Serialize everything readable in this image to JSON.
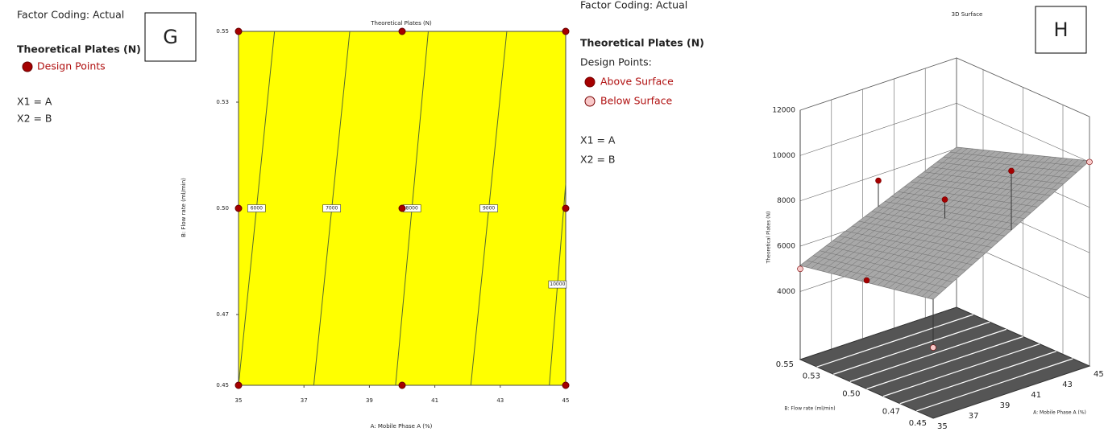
{
  "chart_data": [
    {
      "type": "contour",
      "panel": "G",
      "title": "Theoretical Plates (N)",
      "x_label": "A: Mobile Phase A (%)",
      "y_label": "B: Flow rate (ml/min)",
      "xlim": [
        35,
        45
      ],
      "xticks": [
        35,
        37,
        39,
        41,
        43,
        45
      ],
      "ylim": [
        0.45,
        0.55
      ],
      "yticks": [
        0.45,
        0.47,
        {
          "value": 0.5,
          "label": "0.50"
        },
        0.53,
        0.55
      ],
      "fill_color": "#ffff00",
      "contour_color": "#556b2f",
      "legend": {
        "factor_coding": "Factor Coding: Actual",
        "response": "Theoretical Plates (N)",
        "factors": [
          "X1 = A",
          "X2 = B"
        ]
      },
      "contours": [
        {
          "level": 6000,
          "x": [
            35,
            36.1
          ],
          "y": [
            0.45,
            0.55
          ]
        },
        {
          "level": 7000,
          "x": [
            37.3,
            38.4
          ],
          "y": [
            0.45,
            0.55
          ]
        },
        {
          "level": 8000,
          "x": [
            39.8,
            40.8
          ],
          "y": [
            0.45,
            0.55
          ]
        },
        {
          "level": 9000,
          "x": [
            42.1,
            43.2
          ],
          "y": [
            0.45,
            0.55
          ]
        },
        {
          "level": 10000,
          "x": [
            44.5,
            45
          ],
          "y": [
            0.45,
            0.507
          ]
        }
      ],
      "series": [
        {
          "name": "Design Points",
          "color": "#a50000",
          "x": [
            35,
            40,
            45,
            35,
            40,
            45,
            35,
            40,
            45
          ],
          "y": [
            0.55,
            0.55,
            0.55,
            0.5,
            0.5,
            0.5,
            0.45,
            0.45,
            0.45
          ]
        }
      ]
    },
    {
      "type": "surface3d",
      "panel": "H",
      "title": "3D Surface",
      "x_label": "A: Mobile Phase A (%)",
      "y_label": "B: Flow rate (ml/min)",
      "z_label": "Theoretical Plates (N)",
      "xlim": [
        35,
        45
      ],
      "xticks": [
        35,
        37,
        39,
        41,
        43,
        45
      ],
      "ylim": [
        0.45,
        0.55
      ],
      "yticks": [
        0.45,
        0.47,
        {
          "value": 0.5,
          "label": "0.50"
        },
        0.53,
        0.55
      ],
      "zlim": [
        1000,
        12000
      ],
      "zticks": [
        4000,
        6000,
        8000,
        10000,
        12000
      ],
      "surface": {
        "color": "#a8a8a8",
        "x": [
          35,
          40,
          45
        ],
        "y": [
          0.45,
          0.5,
          0.55
        ],
        "z": [
          [
            6250,
            8150,
            10050
          ],
          [
            5700,
            7375,
            9050
          ],
          [
            5150,
            6600,
            8060
          ]
        ]
      },
      "floor_color": "#555555",
      "legend": {
        "factor_coding": "Factor Coding: Actual",
        "response": "Theoretical Plates (N)",
        "points_title": "Design Points:",
        "factors": [
          "X1 = A",
          "X2 = B"
        ]
      },
      "series": [
        {
          "name": "Above Surface",
          "color": "#a50000",
          "x": [
            35,
            40,
            40,
            40
          ],
          "y": [
            0.5,
            0.55,
            0.5,
            0.45
          ],
          "z": [
            5790,
            7740,
            8200,
            10760
          ]
        },
        {
          "name": "Below Surface",
          "color": "#f8c8c8",
          "x": [
            35,
            45,
            35
          ],
          "y": [
            0.55,
            0.45,
            0.45
          ],
          "z": [
            5000,
            10000,
            4120
          ]
        }
      ]
    }
  ]
}
